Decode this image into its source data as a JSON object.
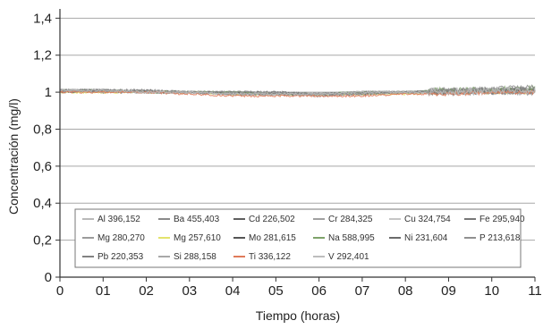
{
  "chart_data": {
    "type": "line",
    "xlabel": "Tiempo (horas)",
    "ylabel": "Concentración (mg/l)",
    "x_tick_labels": [
      "0",
      "01",
      "02",
      "03",
      "04",
      "05",
      "06",
      "07",
      "08",
      "09",
      "10",
      "11"
    ],
    "y_tick_labels": [
      "0",
      "0,2",
      "0,4",
      "0,6",
      "0,8",
      "1",
      "1,2",
      "1,4"
    ],
    "xlim": [
      0,
      11
    ],
    "ylim": [
      0,
      1.45
    ],
    "y_ticks": [
      0,
      0.2,
      0.4,
      0.6,
      0.8,
      1.0,
      1.2,
      1.4
    ],
    "grid": "horizontal",
    "legend_position": "bottom",
    "colors": {
      "grid": "#a8a8a8",
      "axis": "#333333",
      "legend_border": "#777777"
    },
    "x": [
      0,
      1,
      2,
      3,
      4,
      5,
      6,
      7,
      8,
      9,
      10,
      11
    ],
    "series": [
      {
        "name": "Al 396,152",
        "color": "#b9b9b9",
        "values": [
          1.01,
          1.01,
          1.0,
          1.0,
          0.99,
          0.99,
          0.99,
          1.0,
          1.0,
          1.01,
          1.01,
          1.01
        ]
      },
      {
        "name": "Ba 455,403",
        "color": "#8a8a8a",
        "values": [
          1.01,
          1.01,
          1.0,
          1.0,
          0.99,
          0.99,
          0.98,
          0.99,
          1.0,
          1.0,
          1.0,
          1.0
        ]
      },
      {
        "name": "Cd 226,502",
        "color": "#5f5f5f",
        "values": [
          1.01,
          1.01,
          1.01,
          1.0,
          1.0,
          1.0,
          0.99,
          1.0,
          1.0,
          1.01,
          1.01,
          1.01
        ]
      },
      {
        "name": "Cr 284,325",
        "color": "#a0a0a0",
        "values": [
          1.0,
          1.01,
          1.0,
          1.0,
          0.99,
          0.99,
          0.99,
          0.99,
          1.0,
          1.0,
          1.0,
          1.0
        ]
      },
      {
        "name": "Cu 324,754",
        "color": "#c6c6c6",
        "values": [
          1.01,
          1.01,
          1.0,
          1.0,
          1.0,
          0.99,
          0.99,
          1.0,
          1.0,
          1.0,
          1.01,
          1.01
        ]
      },
      {
        "name": "Fe 295,940",
        "color": "#777777",
        "values": [
          1.01,
          1.0,
          1.0,
          1.0,
          0.99,
          0.99,
          0.99,
          0.99,
          1.0,
          1.0,
          1.0,
          1.01
        ]
      },
      {
        "name": "Mg 280,270",
        "color": "#9b9b9b",
        "values": [
          1.01,
          1.01,
          1.01,
          1.0,
          1.0,
          0.99,
          0.99,
          1.0,
          1.0,
          1.01,
          1.01,
          1.01
        ]
      },
      {
        "name": "Mg 257,610",
        "color": "#e3e36c",
        "values": [
          1.0,
          1.0,
          1.0,
          1.0,
          0.99,
          0.99,
          0.99,
          0.99,
          0.99,
          1.0,
          1.0,
          1.0
        ]
      },
      {
        "name": "Mo 281,615",
        "color": "#555555",
        "values": [
          1.01,
          1.01,
          1.0,
          1.0,
          1.0,
          0.99,
          0.99,
          1.0,
          1.0,
          1.0,
          1.01,
          1.01
        ]
      },
      {
        "name": "Na 588,995",
        "color": "#7ea36a",
        "values": [
          1.01,
          1.01,
          1.0,
          1.0,
          1.0,
          0.99,
          0.99,
          1.0,
          1.0,
          1.01,
          1.01,
          1.02
        ]
      },
      {
        "name": "Ni 231,604",
        "color": "#6b6b6b",
        "values": [
          1.0,
          1.01,
          1.0,
          1.0,
          0.99,
          0.99,
          0.99,
          0.99,
          1.0,
          1.0,
          1.0,
          1.0
        ]
      },
      {
        "name": "P 213,618",
        "color": "#909090",
        "values": [
          1.01,
          1.01,
          1.0,
          1.0,
          1.0,
          1.0,
          0.99,
          1.0,
          1.0,
          1.01,
          1.02,
          1.03
        ]
      },
      {
        "name": "Pb 220,353",
        "color": "#828282",
        "values": [
          1.01,
          1.01,
          1.0,
          1.0,
          0.99,
          0.99,
          0.99,
          1.0,
          1.0,
          1.0,
          1.01,
          1.01
        ]
      },
      {
        "name": "Si 288,158",
        "color": "#a8a8a8",
        "values": [
          1.01,
          1.0,
          1.0,
          1.0,
          0.99,
          0.99,
          0.99,
          0.99,
          1.0,
          1.0,
          1.0,
          1.0
        ]
      },
      {
        "name": "Ti 336,122",
        "color": "#e07b5a",
        "values": [
          1.0,
          1.0,
          1.0,
          0.99,
          0.98,
          0.98,
          0.98,
          0.98,
          0.99,
          0.99,
          1.0,
          1.0
        ]
      },
      {
        "name": "V 292,401",
        "color": "#bdbdbd",
        "values": [
          1.01,
          1.01,
          1.0,
          1.0,
          0.99,
          0.99,
          0.99,
          1.0,
          1.0,
          1.0,
          1.01,
          1.01
        ]
      }
    ]
  }
}
